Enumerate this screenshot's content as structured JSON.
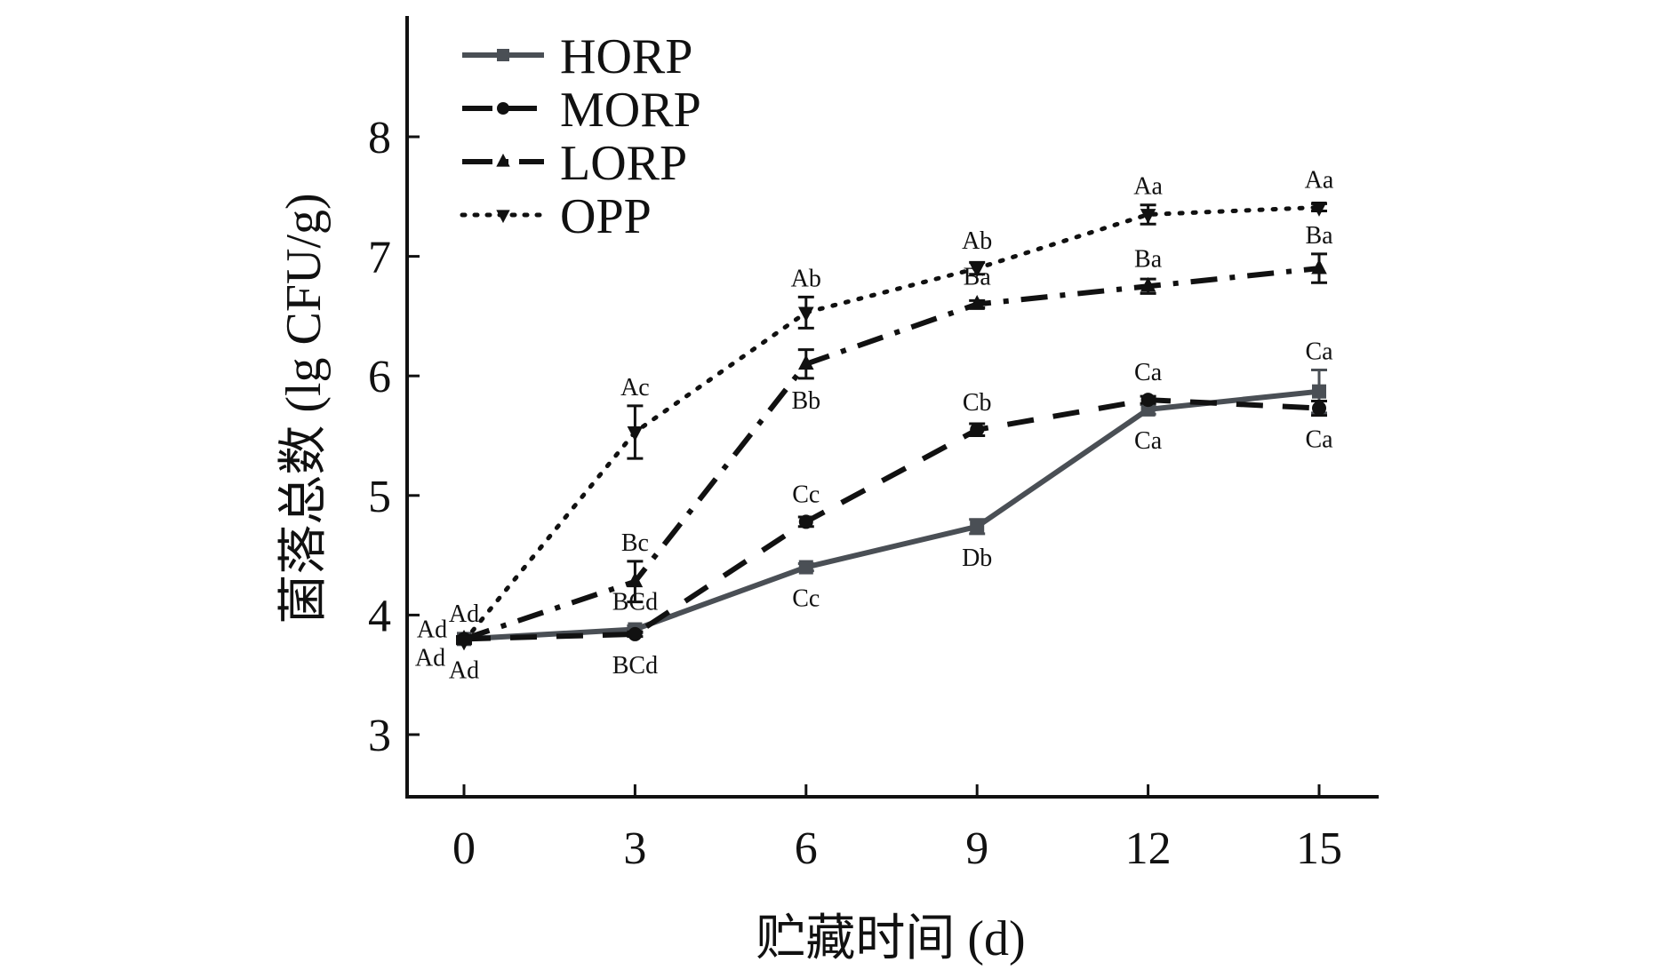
{
  "chart_data": {
    "type": "line",
    "title": "",
    "xlabel": "贮藏时间 (d)",
    "ylabel": "菌落总数 (lg CFU/g)",
    "x": [
      0,
      3,
      6,
      9,
      12,
      15
    ],
    "xticks": [
      "0",
      "3",
      "6",
      "9",
      "12",
      "15"
    ],
    "yticks": [
      "3",
      "4",
      "5",
      "6",
      "7",
      "8"
    ],
    "ylim": [
      2.5,
      9.0
    ],
    "xlim": [
      -1,
      16
    ],
    "grid": false,
    "legend_position": "top-left",
    "series": [
      {
        "name": "HORP",
        "color": "#4a4f55",
        "style": "solid",
        "marker": "square",
        "values": [
          3.8,
          3.88,
          4.4,
          4.74,
          5.72,
          5.87
        ],
        "errors": [
          0.02,
          0.03,
          0.03,
          0.06,
          0.04,
          0.18
        ],
        "labels": [
          [
            "Ad",
            "below"
          ],
          [
            "BCd",
            "above"
          ],
          [
            "Cc",
            "below"
          ],
          [
            "Db",
            "below"
          ],
          [
            "Ca",
            "below"
          ],
          [
            "Ca",
            "above"
          ]
        ]
      },
      {
        "name": "MORP",
        "color": "#111111",
        "style": "dashed",
        "marker": "circle",
        "values": [
          3.8,
          3.84,
          4.78,
          5.55,
          5.8,
          5.73
        ],
        "errors": [
          0.02,
          0.02,
          0.04,
          0.05,
          0.03,
          0.06
        ],
        "labels": [
          [
            "Ad",
            "below-left"
          ],
          [
            "BCd",
            "below"
          ],
          [
            "Cc",
            "above"
          ],
          [
            "Cb",
            "above"
          ],
          [
            "Ca",
            "above"
          ],
          [
            "Ca",
            "below"
          ]
        ]
      },
      {
        "name": "LORP",
        "color": "#111111",
        "style": "dashdot",
        "marker": "triangle-up",
        "values": [
          3.8,
          4.28,
          6.1,
          6.6,
          6.75,
          6.9
        ],
        "errors": [
          0.02,
          0.17,
          0.12,
          0.03,
          0.06,
          0.12
        ],
        "labels": [
          [
            "Ad",
            "left"
          ],
          [
            "Bc",
            "above"
          ],
          [
            "Bb",
            "below"
          ],
          [
            "Ba",
            "above"
          ],
          [
            "Ba",
            "above"
          ],
          [
            "Ba",
            "above"
          ]
        ]
      },
      {
        "name": "OPP",
        "color": "#111111",
        "style": "dotted",
        "marker": "triangle-down",
        "values": [
          3.78,
          5.53,
          6.53,
          6.9,
          7.35,
          7.41
        ],
        "errors": [
          0.02,
          0.22,
          0.13,
          0.05,
          0.08,
          0.03
        ],
        "labels": [
          [
            "Ad",
            "above"
          ],
          [
            "Ac",
            "above"
          ],
          [
            "Ab",
            "above"
          ],
          [
            "Ab",
            "above"
          ],
          [
            "Aa",
            "above"
          ],
          [
            "Aa",
            "above"
          ]
        ]
      }
    ]
  }
}
